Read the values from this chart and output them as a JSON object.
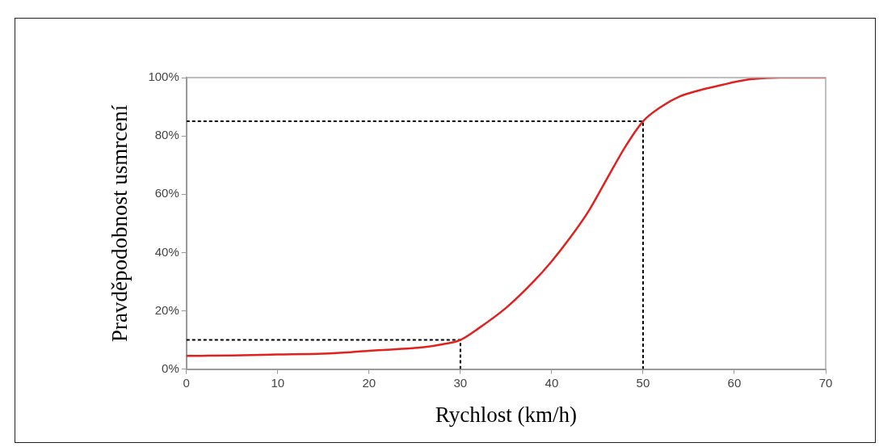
{
  "chart_data": {
    "type": "line",
    "xlabel": "Rychlost (km/h)",
    "ylabel": "Pravděpodobnost usmrcení",
    "xlim": [
      0,
      70
    ],
    "xticks": [
      0,
      10,
      20,
      30,
      40,
      50,
      60,
      70
    ],
    "ylim": [
      0,
      100
    ],
    "yticks": [
      {
        "value": 0,
        "label": "0%"
      },
      {
        "value": 20,
        "label": "20%"
      },
      {
        "value": 40,
        "label": "40%"
      },
      {
        "value": 60,
        "label": "60%"
      },
      {
        "value": 80,
        "label": "80%"
      },
      {
        "value": 100,
        "label": "100%"
      }
    ],
    "grid": false,
    "legend": false,
    "marker": "none",
    "series": [
      {
        "color": "#e0211d",
        "line_style": "solid",
        "x": [
          0,
          5,
          10,
          15,
          18,
          20,
          23,
          26,
          28,
          30,
          32,
          35,
          38,
          40,
          42,
          44,
          46,
          48,
          50,
          52,
          54,
          56,
          58,
          60,
          62,
          65,
          70
        ],
        "values": [
          4.5,
          4.7,
          5,
          5.3,
          5.8,
          6.3,
          6.8,
          7.5,
          8.5,
          10,
          14,
          21,
          30,
          37,
          45,
          54,
          65,
          76,
          85,
          90,
          93.5,
          95.5,
          97,
          98.5,
          99.5,
          100,
          100
        ]
      },
      {
        "color": "#000000",
        "line_style": "dashed",
        "x": [
          0,
          30,
          30
        ],
        "values": [
          10,
          10,
          0
        ]
      },
      {
        "color": "#000000",
        "line_style": "dashed",
        "x": [
          0,
          50,
          50
        ],
        "values": [
          85,
          85,
          0
        ]
      }
    ]
  }
}
